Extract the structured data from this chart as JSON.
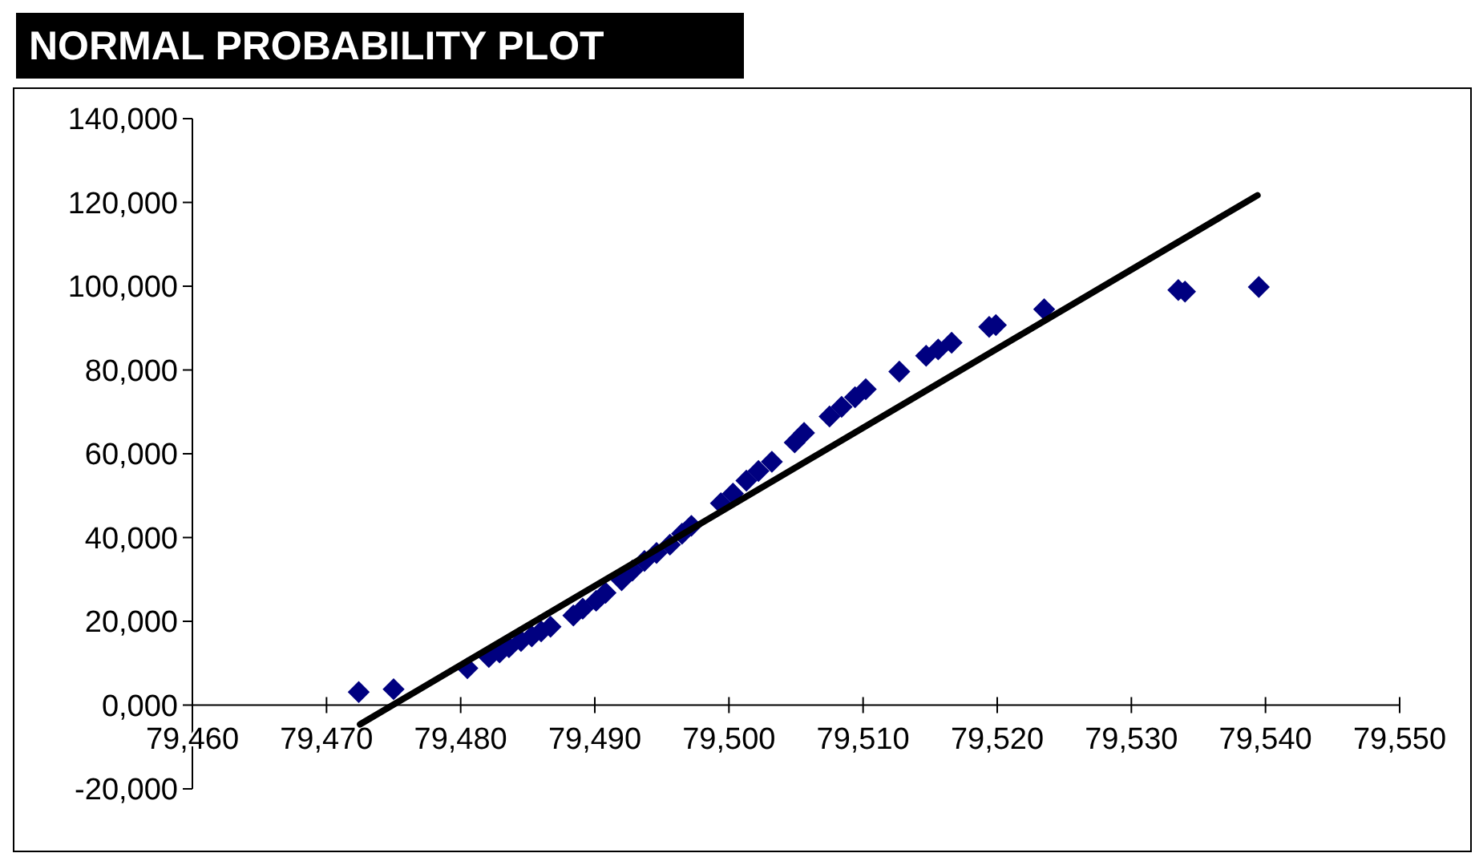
{
  "chart_data": {
    "type": "scatter",
    "title": "NORMAL PROBABILITY PLOT",
    "xlim": [
      79460,
      79550
    ],
    "ylim": [
      -20000,
      140000
    ],
    "xticks": [
      {
        "value": 79460,
        "label": "79,460"
      },
      {
        "value": 79470,
        "label": "79,470"
      },
      {
        "value": 79480,
        "label": "79,480"
      },
      {
        "value": 79490,
        "label": "79,490"
      },
      {
        "value": 79500,
        "label": "79,500"
      },
      {
        "value": 79510,
        "label": "79,510"
      },
      {
        "value": 79520,
        "label": "79,520"
      },
      {
        "value": 79530,
        "label": "79,530"
      },
      {
        "value": 79540,
        "label": "79,540"
      },
      {
        "value": 79550,
        "label": "79,550"
      }
    ],
    "yticks": [
      {
        "value": -20000,
        "label": "-20,000"
      },
      {
        "value": 0,
        "label": "0,000"
      },
      {
        "value": 20000,
        "label": "20,000"
      },
      {
        "value": 40000,
        "label": "40,000"
      },
      {
        "value": 60000,
        "label": "60,000"
      },
      {
        "value": 80000,
        "label": "80,000"
      },
      {
        "value": 100000,
        "label": "100,000"
      },
      {
        "value": 120000,
        "label": "120,000"
      },
      {
        "value": 140000,
        "label": "140,000"
      }
    ],
    "series": [
      {
        "color": "#000080",
        "marker": "diamond",
        "x": [
          79472.4,
          79475,
          79480.5,
          79482.1,
          79482.9,
          79483.6,
          79484.5,
          79485.3,
          79486,
          79486.7,
          79488.4,
          79489.1,
          79490.1,
          79490.8,
          79492,
          79492.8,
          79493.7,
          79494.6,
          79495.6,
          79496.5,
          79497.2,
          79499.4,
          79500.3,
          79501.3,
          79502.2,
          79503.2,
          79504.9,
          79505.6,
          79507.5,
          79508.4,
          79509.4,
          79510.2,
          79512.7,
          79514.7,
          79515.6,
          79516.6,
          79519.4,
          79519.9,
          79523.5,
          79533.5,
          79534,
          79539.5
        ],
        "values": [
          3100,
          3800,
          8800,
          11500,
          12600,
          13800,
          15300,
          16400,
          17600,
          18700,
          21400,
          23000,
          24900,
          26800,
          29800,
          32100,
          34400,
          36300,
          38300,
          40900,
          42800,
          48200,
          50500,
          53600,
          55900,
          58100,
          62700,
          65000,
          68900,
          71200,
          73500,
          75400,
          79600,
          83400,
          84900,
          86500,
          90300,
          90700,
          94500,
          99100,
          98700,
          99800
        ]
      },
      {
        "type": "line",
        "color": "#000000",
        "line_style": "solid",
        "x": [
          79472.5,
          79539.4
        ],
        "values": [
          -4600,
          121700
        ]
      }
    ]
  }
}
